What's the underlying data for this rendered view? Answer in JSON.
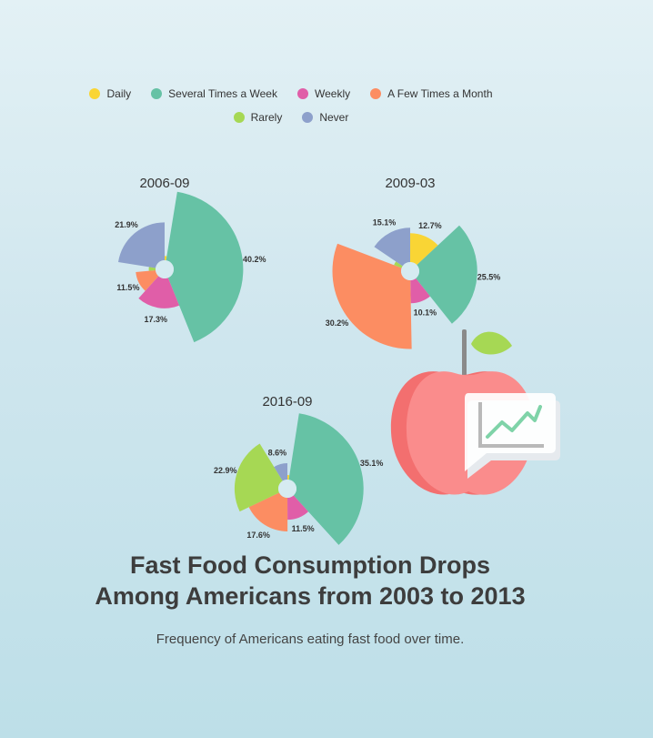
{
  "title_line1": "Fast Food Consumption Drops",
  "title_line2": "Among Americans from 2003 to 2013",
  "subtitle": "Frequency of Americans eating fast food over time.",
  "legend": [
    {
      "label": "Daily",
      "color": "#f9d535"
    },
    {
      "label": "Several Times a Week",
      "color": "#66c2a5"
    },
    {
      "label": "Weekly",
      "color": "#e05ea8"
    },
    {
      "label": "A Few Times a Month",
      "color": "#fc8d62"
    },
    {
      "label": "Rarely",
      "color": "#a6d854"
    },
    {
      "label": "Never",
      "color": "#8da0cb"
    }
  ],
  "chart_data": {
    "type": "pie",
    "variant": "nightingale-rose",
    "categories": [
      "Daily",
      "Several Times a Week",
      "Weekly",
      "A Few Times a Month",
      "Rarely",
      "Never"
    ],
    "colors": [
      "#f9d535",
      "#66c2a5",
      "#e05ea8",
      "#fc8d62",
      "#a6d854",
      "#8da0cb"
    ],
    "charts": [
      {
        "title": "2006-09",
        "values": [
          2.5,
          40.2,
          17.3,
          11.5,
          3.9,
          21.9
        ],
        "labels": [
          "",
          "40.2%",
          "17.3%",
          "11.5%",
          "",
          "21.9%"
        ]
      },
      {
        "title": "2009-03",
        "values": [
          12.7,
          25.5,
          10.1,
          30.2,
          3.6,
          15.1
        ],
        "labels": [
          "12.7%",
          "25.5%",
          "10.1%",
          "30.2%",
          "",
          "15.1%"
        ]
      },
      {
        "title": "2016-09",
        "values": [
          2.4,
          35.1,
          11.5,
          17.6,
          22.9,
          8.6
        ],
        "labels": [
          "",
          "35.1%",
          "11.5%",
          "17.6%",
          "22.9%",
          "8.6%"
        ]
      }
    ]
  }
}
